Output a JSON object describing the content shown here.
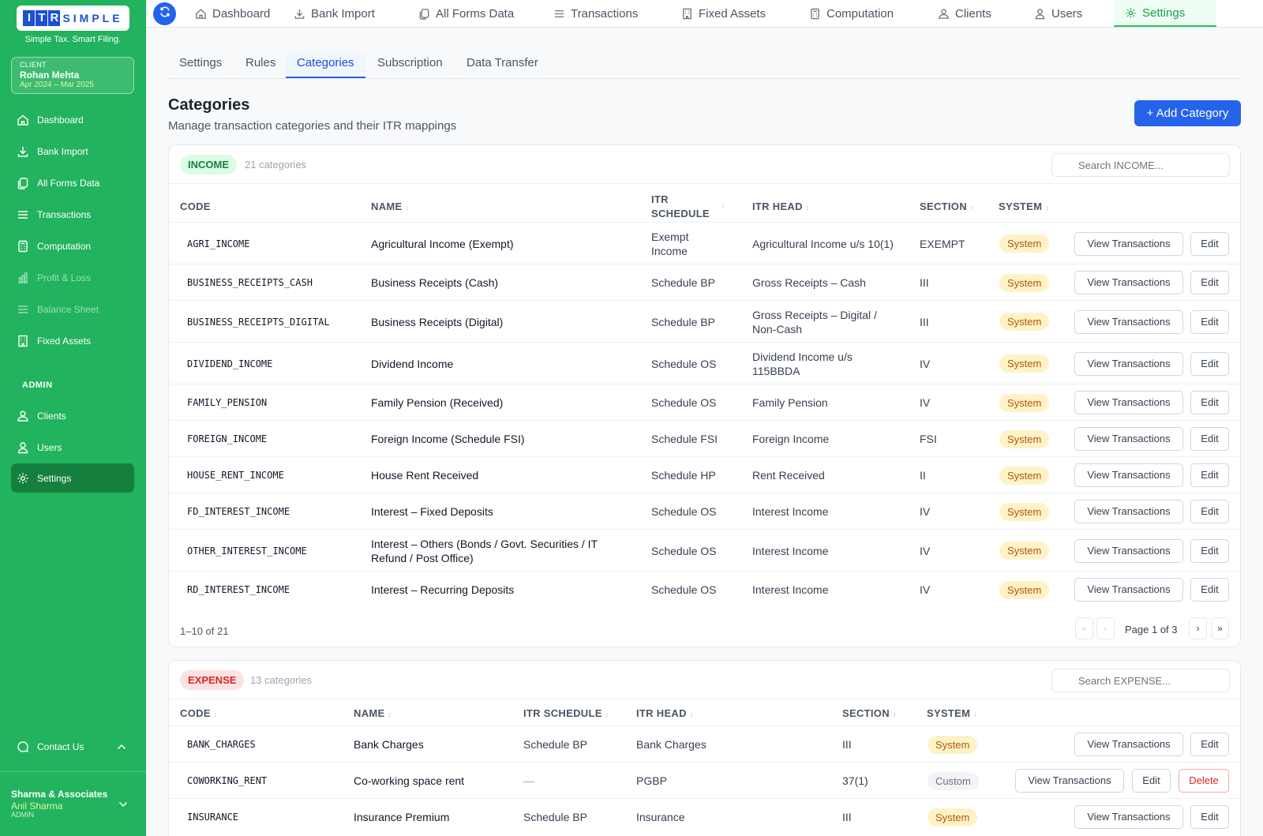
{
  "brand": {
    "logo_letters": [
      "I",
      "T",
      "R"
    ],
    "logo_word": "SIMPLE",
    "tagline": "Simple Tax. Smart Filing.",
    "accent": "#22b35e",
    "primary": "#2563eb"
  },
  "client": {
    "label": "CLIENT",
    "name": "Rohan Mehta",
    "period": "Apr 2024 – Mar 2025"
  },
  "sidebar": {
    "items": [
      {
        "label": "Dashboard",
        "icon": "home-icon"
      },
      {
        "label": "Bank Import",
        "icon": "download-icon"
      },
      {
        "label": "All Forms Data",
        "icon": "forms-icon"
      },
      {
        "label": "Transactions",
        "icon": "list-icon"
      },
      {
        "label": "Computation",
        "icon": "calculator-icon"
      },
      {
        "label": "Profit & Loss",
        "icon": "bar-chart-icon"
      },
      {
        "label": "Balance Sheet",
        "icon": "list-icon"
      },
      {
        "label": "Fixed Assets",
        "icon": "building-icon"
      }
    ],
    "admin_label": "ADMIN",
    "admin_items": [
      {
        "label": "Clients",
        "icon": "clients-icon"
      },
      {
        "label": "Users",
        "icon": "users-icon"
      },
      {
        "label": "Settings",
        "icon": "gear-icon"
      }
    ],
    "contact": "Contact Us",
    "org_name": "Sharma & Associates",
    "user_name": "Anil Sharma",
    "user_role": "ADMIN"
  },
  "topnav": {
    "items": [
      {
        "label": "Dashboard",
        "icon": "home-icon"
      },
      {
        "label": "Bank Import",
        "icon": "download-icon"
      },
      {
        "label": "All Forms Data",
        "icon": "forms-icon"
      },
      {
        "label": "Transactions",
        "icon": "list-icon"
      },
      {
        "label": "Fixed Assets",
        "icon": "building-icon"
      },
      {
        "label": "Computation",
        "icon": "calculator-icon"
      },
      {
        "label": "Clients",
        "icon": "clients-icon"
      },
      {
        "label": "Users",
        "icon": "users-icon"
      },
      {
        "label": "Settings",
        "icon": "gear-icon"
      }
    ]
  },
  "subtabs": [
    "Settings",
    "Rules",
    "Categories",
    "Subscription",
    "Data Transfer"
  ],
  "page": {
    "title": "Categories",
    "subtitle": "Manage transaction categories and their ITR mappings",
    "add_label": "+ Add Category"
  },
  "income": {
    "tag": "INCOME",
    "count": "21 categories",
    "search_placeholder": "Search INCOME...",
    "headers": {
      "code": "CODE",
      "name": "NAME",
      "schedule_1": "ITR",
      "schedule_2": "SCHEDULE",
      "head": "ITR HEAD",
      "section": "SECTION",
      "system": "SYSTEM"
    },
    "rows": [
      {
        "code": "AGRI_INCOME",
        "name": "Agricultural Income (Exempt)",
        "schedule": "Exempt Income",
        "head": "Agricultural Income u/s 10(1)",
        "section": "EXEMPT",
        "system": "System"
      },
      {
        "code": "BUSINESS_RECEIPTS_CASH",
        "name": "Business Receipts (Cash)",
        "schedule": "Schedule BP",
        "head": "Gross Receipts – Cash",
        "section": "III",
        "system": "System"
      },
      {
        "code": "BUSINESS_RECEIPTS_DIGITAL",
        "name": "Business Receipts (Digital)",
        "schedule": "Schedule BP",
        "head": "Gross Receipts – Digital / Non-Cash",
        "section": "III",
        "system": "System"
      },
      {
        "code": "DIVIDEND_INCOME",
        "name": "Dividend Income",
        "schedule": "Schedule OS",
        "head": "Dividend Income u/s 115BBDA",
        "section": "IV",
        "system": "System"
      },
      {
        "code": "FAMILY_PENSION",
        "name": "Family Pension (Received)",
        "schedule": "Schedule OS",
        "head": "Family Pension",
        "section": "IV",
        "system": "System"
      },
      {
        "code": "FOREIGN_INCOME",
        "name": "Foreign Income (Schedule FSI)",
        "schedule": "Schedule FSI",
        "head": "Foreign Income",
        "section": "FSI",
        "system": "System"
      },
      {
        "code": "HOUSE_RENT_INCOME",
        "name": "House Rent Received",
        "schedule": "Schedule HP",
        "head": "Rent Received",
        "section": "II",
        "system": "System"
      },
      {
        "code": "FD_INTEREST_INCOME",
        "name": "Interest – Fixed Deposits",
        "schedule": "Schedule OS",
        "head": "Interest Income",
        "section": "IV",
        "system": "System"
      },
      {
        "code": "OTHER_INTEREST_INCOME",
        "name": "Interest – Others (Bonds / Govt. Securities / IT Refund / Post Office)",
        "schedule": "Schedule OS",
        "head": "Interest Income",
        "section": "IV",
        "system": "System"
      },
      {
        "code": "RD_INTEREST_INCOME",
        "name": "Interest – Recurring Deposits",
        "schedule": "Schedule OS",
        "head": "Interest Income",
        "section": "IV",
        "system": "System"
      }
    ],
    "view_label": "View Transactions",
    "edit_label": "Edit",
    "range": "1–10 of 21",
    "page_of": "Page 1 of 3",
    "pager": {
      "first": "«",
      "prev": "‹",
      "next": "›",
      "last": "»"
    }
  },
  "expense": {
    "tag": "EXPENSE",
    "count": "13 categories",
    "search_placeholder": "Search EXPENSE...",
    "headers": {
      "code": "CODE",
      "name": "NAME",
      "schedule": "ITR SCHEDULE",
      "head": "ITR HEAD",
      "section": "SECTION",
      "system": "SYSTEM"
    },
    "rows": [
      {
        "code": "BANK_CHARGES",
        "name": "Bank Charges",
        "schedule": "Schedule BP",
        "head": "Bank Charges",
        "section": "III",
        "system": "System"
      },
      {
        "code": "COWORKING_RENT",
        "name": "Co-working space rent",
        "schedule": "—",
        "head": "PGBP",
        "section": "37(1)",
        "system": "Custom"
      },
      {
        "code": "INSURANCE",
        "name": "Insurance Premium",
        "schedule": "Schedule BP",
        "head": "Insurance",
        "section": "III",
        "system": "System"
      }
    ],
    "view_label": "View Transactions",
    "edit_label": "Edit",
    "delete_label": "Delete"
  }
}
